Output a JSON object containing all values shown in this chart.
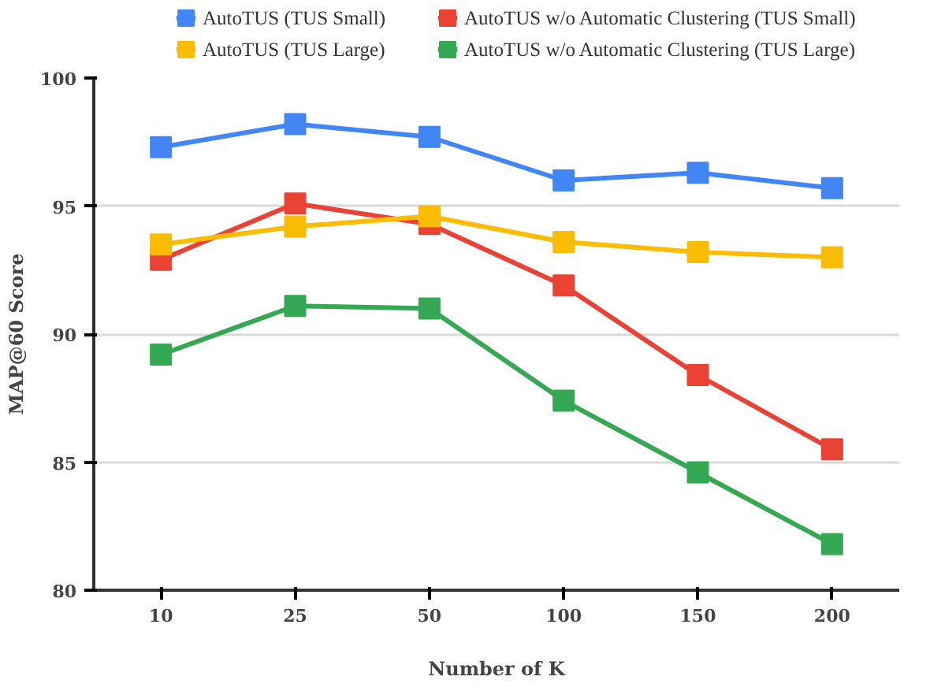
{
  "chart_data": {
    "type": "line",
    "xlabel": "Number of K",
    "ylabel": "MAP@60 Score",
    "categories": [
      "10",
      "25",
      "50",
      "100",
      "150",
      "200"
    ],
    "series": [
      {
        "name": "AutoTUS (TUS Small)",
        "color": "#4285f4",
        "values": [
          97.3,
          98.2,
          97.7,
          96.0,
          96.3,
          95.7
        ]
      },
      {
        "name": "AutoTUS w/o Automatic Clustering (TUS Small)",
        "color": "#ea4335",
        "values": [
          92.9,
          95.1,
          94.3,
          91.9,
          88.4,
          85.5
        ]
      },
      {
        "name": "AutoTUS (TUS Large)",
        "color": "#fbbc04",
        "values": [
          93.5,
          94.2,
          94.6,
          93.6,
          93.2,
          93.0
        ]
      },
      {
        "name": "AutoTUS w/o Automatic Clustering (TUS Large)",
        "color": "#34a853",
        "values": [
          89.2,
          91.1,
          91.0,
          87.4,
          84.6,
          81.8
        ]
      }
    ],
    "ylim": [
      80,
      100
    ],
    "yticks": [
      80,
      85,
      90,
      95,
      100
    ],
    "grid": "y",
    "legend": "top",
    "marker": "square",
    "line_style": "solid"
  }
}
